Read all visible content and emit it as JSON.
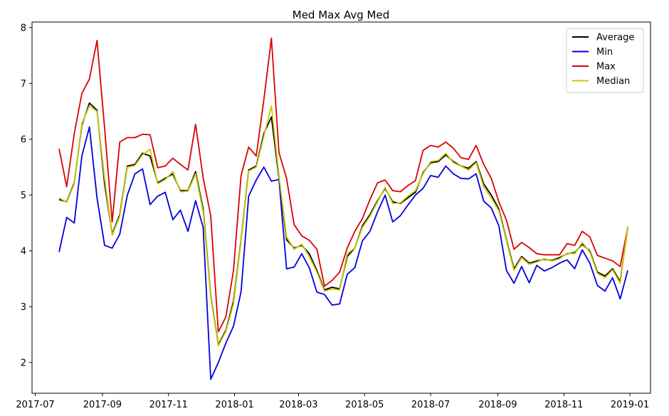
{
  "chart_data": {
    "type": "line",
    "title": "Med Max Avg Med",
    "xlabel": "",
    "ylabel": "",
    "x_start": "2017-07-23",
    "x_step_days": 7,
    "xlim": [
      "2017-06-28",
      "2019-01-20"
    ],
    "ylim": [
      1.45,
      8.1
    ],
    "x_ticks": [
      {
        "date": "2017-07-01",
        "label": "2017-07"
      },
      {
        "date": "2017-09-01",
        "label": "2017-09"
      },
      {
        "date": "2017-11-01",
        "label": "2017-11"
      },
      {
        "date": "2018-01-01",
        "label": "2018-01"
      },
      {
        "date": "2018-03-01",
        "label": "2018-03"
      },
      {
        "date": "2018-05-01",
        "label": "2018-05"
      },
      {
        "date": "2018-07-01",
        "label": "2018-07"
      },
      {
        "date": "2018-09-01",
        "label": "2018-09"
      },
      {
        "date": "2018-11-01",
        "label": "2018-11"
      },
      {
        "date": "2019-01-01",
        "label": "2019-01"
      }
    ],
    "y_ticks": [
      2,
      3,
      4,
      5,
      6,
      7,
      8
    ],
    "grid": false,
    "legend_position": "top-right",
    "series": [
      {
        "name": "Average",
        "color": "#000000",
        "values": [
          4.92,
          4.88,
          5.22,
          6.25,
          6.65,
          6.52,
          5.2,
          4.3,
          4.65,
          5.52,
          5.55,
          5.75,
          5.7,
          5.22,
          5.3,
          5.38,
          5.08,
          5.08,
          5.42,
          4.75,
          3.2,
          2.32,
          2.58,
          3.1,
          4.2,
          5.45,
          5.52,
          6.1,
          6.4,
          5.3,
          4.2,
          4.05,
          4.1,
          3.95,
          3.65,
          3.3,
          3.35,
          3.32,
          3.9,
          4.05,
          4.45,
          4.65,
          4.9,
          5.12,
          4.88,
          4.85,
          4.95,
          5.05,
          5.4,
          5.58,
          5.6,
          5.72,
          5.6,
          5.52,
          5.48,
          5.6,
          5.2,
          5.0,
          4.75,
          4.2,
          3.68,
          3.9,
          3.78,
          3.82,
          3.85,
          3.83,
          3.88,
          3.95,
          3.97,
          4.12,
          4.0,
          3.62,
          3.55,
          3.68,
          3.45,
          4.42
        ]
      },
      {
        "name": "Min",
        "color": "#0000dd",
        "values": [
          3.98,
          4.6,
          4.5,
          5.7,
          6.22,
          4.95,
          4.1,
          4.05,
          4.3,
          5.0,
          5.38,
          5.47,
          4.83,
          4.98,
          5.05,
          4.56,
          4.73,
          4.35,
          4.9,
          4.42,
          1.7,
          2.0,
          2.35,
          2.65,
          3.27,
          4.98,
          5.27,
          5.5,
          5.25,
          5.28,
          3.68,
          3.71,
          3.95,
          3.7,
          3.26,
          3.22,
          3.03,
          3.05,
          3.58,
          3.7,
          4.18,
          4.35,
          4.7,
          5.0,
          4.52,
          4.63,
          4.82,
          5.0,
          5.12,
          5.35,
          5.32,
          5.52,
          5.38,
          5.3,
          5.29,
          5.38,
          4.89,
          4.77,
          4.45,
          3.65,
          3.42,
          3.72,
          3.43,
          3.74,
          3.64,
          3.7,
          3.78,
          3.84,
          3.68,
          4.02,
          3.78,
          3.38,
          3.28,
          3.52,
          3.14,
          3.65
        ]
      },
      {
        "name": "Max",
        "color": "#dd0000",
        "values": [
          5.83,
          5.15,
          6.1,
          6.82,
          7.08,
          7.77,
          6.2,
          4.52,
          5.95,
          6.03,
          6.03,
          6.09,
          6.08,
          5.49,
          5.52,
          5.66,
          5.55,
          5.45,
          6.27,
          5.31,
          4.63,
          2.55,
          2.82,
          3.65,
          5.35,
          5.86,
          5.7,
          6.7,
          7.81,
          5.76,
          5.3,
          4.47,
          4.27,
          4.19,
          4.03,
          3.37,
          3.47,
          3.62,
          4.05,
          4.35,
          4.58,
          4.92,
          5.22,
          5.27,
          5.08,
          5.06,
          5.17,
          5.26,
          5.8,
          5.89,
          5.86,
          5.95,
          5.84,
          5.67,
          5.64,
          5.89,
          5.55,
          5.3,
          4.88,
          4.55,
          4.03,
          4.15,
          4.06,
          3.95,
          3.93,
          3.93,
          3.93,
          4.13,
          4.1,
          4.35,
          4.25,
          3.92,
          3.87,
          3.82,
          3.72,
          4.42
        ]
      },
      {
        "name": "Median",
        "color": "#c8c800",
        "values": [
          4.95,
          4.87,
          5.2,
          6.28,
          6.6,
          6.5,
          5.3,
          4.28,
          4.62,
          5.5,
          5.53,
          5.72,
          5.82,
          5.2,
          5.28,
          5.42,
          5.06,
          5.07,
          5.38,
          4.7,
          3.18,
          2.3,
          2.56,
          3.05,
          4.18,
          5.43,
          5.5,
          6.05,
          6.6,
          5.35,
          4.25,
          4.03,
          4.12,
          3.9,
          3.62,
          3.28,
          3.32,
          3.3,
          3.95,
          4.05,
          4.42,
          4.62,
          4.88,
          5.14,
          4.85,
          4.86,
          4.98,
          5.08,
          5.38,
          5.6,
          5.62,
          5.75,
          5.58,
          5.52,
          5.45,
          5.58,
          5.15,
          4.95,
          4.72,
          4.18,
          3.65,
          3.88,
          3.76,
          3.8,
          3.86,
          3.82,
          3.86,
          3.96,
          3.95,
          4.15,
          3.98,
          3.6,
          3.52,
          3.66,
          3.42,
          4.44
        ]
      }
    ]
  }
}
